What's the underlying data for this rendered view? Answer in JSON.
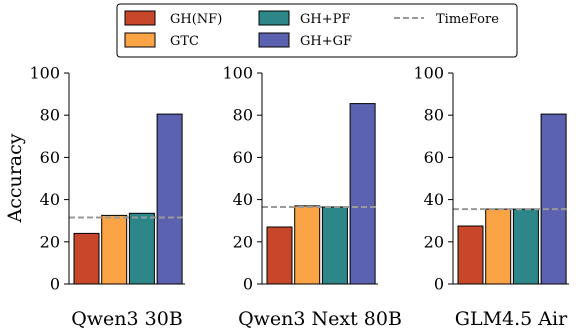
{
  "legend": {
    "items": [
      {
        "label": "GH(NF)",
        "color": "#c8472a",
        "kind": "bar"
      },
      {
        "label": "GTC",
        "color": "#fba445",
        "kind": "bar"
      },
      {
        "label": "GH+PF",
        "color": "#2d8789",
        "kind": "bar"
      },
      {
        "label": "GH+GF",
        "color": "#5b63b0",
        "kind": "bar"
      },
      {
        "label": "TimeFore",
        "color": "#999999",
        "kind": "dashed-line"
      }
    ]
  },
  "chart_data": {
    "type": "bar",
    "ylabel": "Accuracy",
    "ylim": [
      0,
      100
    ],
    "yticks": [
      "0",
      "20",
      "40",
      "60",
      "80",
      "100"
    ],
    "grid": false,
    "legend_placement": "top-center",
    "series_names": [
      "GH(NF)",
      "GTC",
      "GH+PF",
      "GH+GF"
    ],
    "panels": [
      {
        "title": "Qwen3 30B",
        "values": [
          24,
          32.5,
          33.5,
          80.5
        ],
        "reference": 31.5
      },
      {
        "title": "Qwen3 Next 80B",
        "values": [
          27,
          37,
          36.5,
          85.5
        ],
        "reference": 36.5
      },
      {
        "title": "GLM4.5 Air",
        "values": [
          27.5,
          35.5,
          35.5,
          80.5
        ],
        "reference": 35.5
      }
    ]
  }
}
